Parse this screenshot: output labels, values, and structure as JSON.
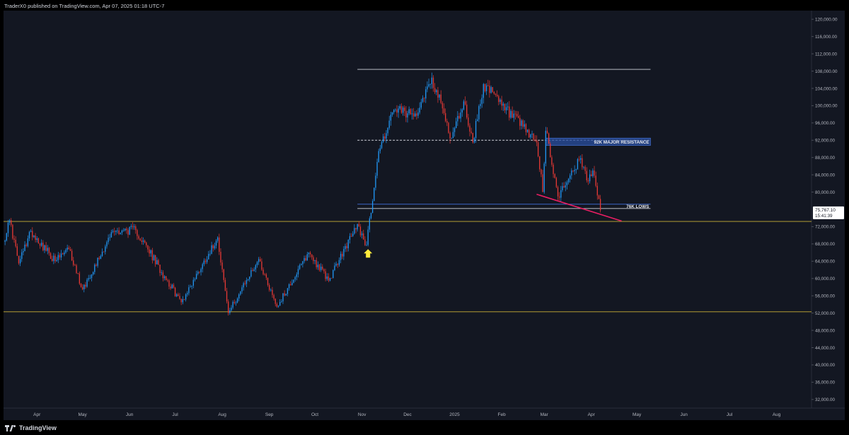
{
  "header": {
    "publisher": "TraderX0 published on TradingView.com, Apr 07, 2025 01:18 UTC-7"
  },
  "footer": {
    "brand": "TradingView"
  },
  "colors": {
    "background": "#131722",
    "frame": "#000000",
    "up_candle": "#2196f3",
    "down_candle": "#e53935",
    "yellow_level": "#c9b037",
    "white_level": "#d1d4dc",
    "resistance_zone": "#2a4fa0",
    "blue_level": "#3f6fd8",
    "trendline": "#e91e63",
    "arrow": "#ffeb3b",
    "axis_text": "#b2b5be"
  },
  "chart_data": {
    "type": "candlestick",
    "title": "",
    "xlabel": "",
    "ylabel": "",
    "ylim": [
      30000,
      122000
    ],
    "x_range": [
      "2024-03-10",
      "2025-08-24"
    ],
    "y_ticks": [
      "120,000.00",
      "116,000.00",
      "112,000.00",
      "108,000.00",
      "104,000.00",
      "100,000.00",
      "96,000.00",
      "92,000.00",
      "88,000.00",
      "84,000.00",
      "80,000.00",
      "72,000.00",
      "68,000.00",
      "64,000.00",
      "60,000.00",
      "56,000.00",
      "52,000.00",
      "48,000.00",
      "44,000.00",
      "40,000.00",
      "36,000.00",
      "32,000.00"
    ],
    "x_ticks": [
      {
        "label": "Apr",
        "date": "2024-04-01"
      },
      {
        "label": "May",
        "date": "2024-05-01"
      },
      {
        "label": "Jun",
        "date": "2024-06-01"
      },
      {
        "label": "Jul",
        "date": "2024-07-01"
      },
      {
        "label": "Aug",
        "date": "2024-08-01"
      },
      {
        "label": "Sep",
        "date": "2024-09-01"
      },
      {
        "label": "Oct",
        "date": "2024-10-01"
      },
      {
        "label": "Nov",
        "date": "2024-11-01"
      },
      {
        "label": "Dec",
        "date": "2024-12-01"
      },
      {
        "label": "2025",
        "date": "2025-01-01"
      },
      {
        "label": "Feb",
        "date": "2025-02-01"
      },
      {
        "label": "Mar",
        "date": "2025-03-01"
      },
      {
        "label": "Apr",
        "date": "2025-04-01"
      },
      {
        "label": "May",
        "date": "2025-05-01"
      },
      {
        "label": "Jun",
        "date": "2025-06-01"
      },
      {
        "label": "Jul",
        "date": "2025-07-01"
      },
      {
        "label": "Aug",
        "date": "2025-08-01"
      }
    ],
    "price_path": [
      {
        "date": "2024-03-10",
        "price": 68500
      },
      {
        "date": "2024-03-14",
        "price": 73500
      },
      {
        "date": "2024-03-20",
        "price": 63500
      },
      {
        "date": "2024-03-28",
        "price": 71000
      },
      {
        "date": "2024-04-13",
        "price": 64000
      },
      {
        "date": "2024-04-22",
        "price": 66800
      },
      {
        "date": "2024-05-01",
        "price": 57500
      },
      {
        "date": "2024-05-21",
        "price": 71000
      },
      {
        "date": "2024-06-05",
        "price": 71200
      },
      {
        "date": "2024-06-24",
        "price": 60500
      },
      {
        "date": "2024-07-05",
        "price": 54500
      },
      {
        "date": "2024-07-29",
        "price": 69500
      },
      {
        "date": "2024-08-05",
        "price": 52000
      },
      {
        "date": "2024-08-25",
        "price": 64500
      },
      {
        "date": "2024-09-06",
        "price": 53500
      },
      {
        "date": "2024-09-27",
        "price": 66000
      },
      {
        "date": "2024-10-10",
        "price": 59500
      },
      {
        "date": "2024-10-29",
        "price": 72600
      },
      {
        "date": "2024-11-04",
        "price": 67800
      },
      {
        "date": "2024-11-12",
        "price": 89500
      },
      {
        "date": "2024-11-22",
        "price": 99000
      },
      {
        "date": "2024-12-05",
        "price": 97500
      },
      {
        "date": "2024-12-17",
        "price": 106500
      },
      {
        "date": "2024-12-30",
        "price": 92500
      },
      {
        "date": "2025-01-07",
        "price": 101000
      },
      {
        "date": "2025-01-13",
        "price": 91500
      },
      {
        "date": "2025-01-20",
        "price": 105000
      },
      {
        "date": "2025-02-01",
        "price": 100000
      },
      {
        "date": "2025-02-24",
        "price": 91500
      },
      {
        "date": "2025-02-28",
        "price": 80000
      },
      {
        "date": "2025-03-02",
        "price": 94200
      },
      {
        "date": "2025-03-10",
        "price": 79000
      },
      {
        "date": "2025-03-24",
        "price": 87500
      },
      {
        "date": "2025-03-30",
        "price": 82500
      },
      {
        "date": "2025-04-02",
        "price": 85000
      },
      {
        "date": "2025-04-07",
        "price": 75767
      }
    ],
    "levels": [
      {
        "name": "yellow-upper",
        "price": 73200,
        "style": "solid",
        "color": "#c9b037"
      },
      {
        "name": "yellow-lower",
        "price": 52300,
        "style": "solid",
        "color": "#c9b037"
      },
      {
        "name": "white-top",
        "price": 108400,
        "start": "2024-10-29",
        "end": "2025-05-10",
        "style": "solid",
        "color": "#d1d4dc"
      },
      {
        "name": "white-dashed",
        "price": 92000,
        "start": "2024-10-29",
        "end": "2025-05-10",
        "style": "dashed",
        "color": "#d1d4dc"
      },
      {
        "name": "white-76k",
        "price": 76200,
        "start": "2024-10-29",
        "end": "2025-05-10",
        "style": "solid",
        "color": "#d1d4dc"
      },
      {
        "name": "blue-77k",
        "price": 77200,
        "start": "2024-10-29",
        "end": "2025-05-10",
        "style": "solid",
        "color": "#3f6fd8"
      }
    ],
    "resistance_zone": {
      "from": 90800,
      "to": 92500,
      "start": "2025-03-02",
      "end": "2025-05-10",
      "label": "92K MAJOR RESISTANCE"
    },
    "lows_label": {
      "text": "76K LOWS",
      "price": 76700,
      "date": "2025-05-10"
    },
    "trendline": {
      "start": {
        "date": "2025-02-24",
        "price": 79500
      },
      "end": {
        "date": "2025-04-21",
        "price": 73300
      }
    },
    "arrow": {
      "date": "2024-11-05",
      "price": 66800,
      "direction": "up"
    },
    "current_price": {
      "label": "75,767.10",
      "countdown": "15:41:39"
    }
  }
}
